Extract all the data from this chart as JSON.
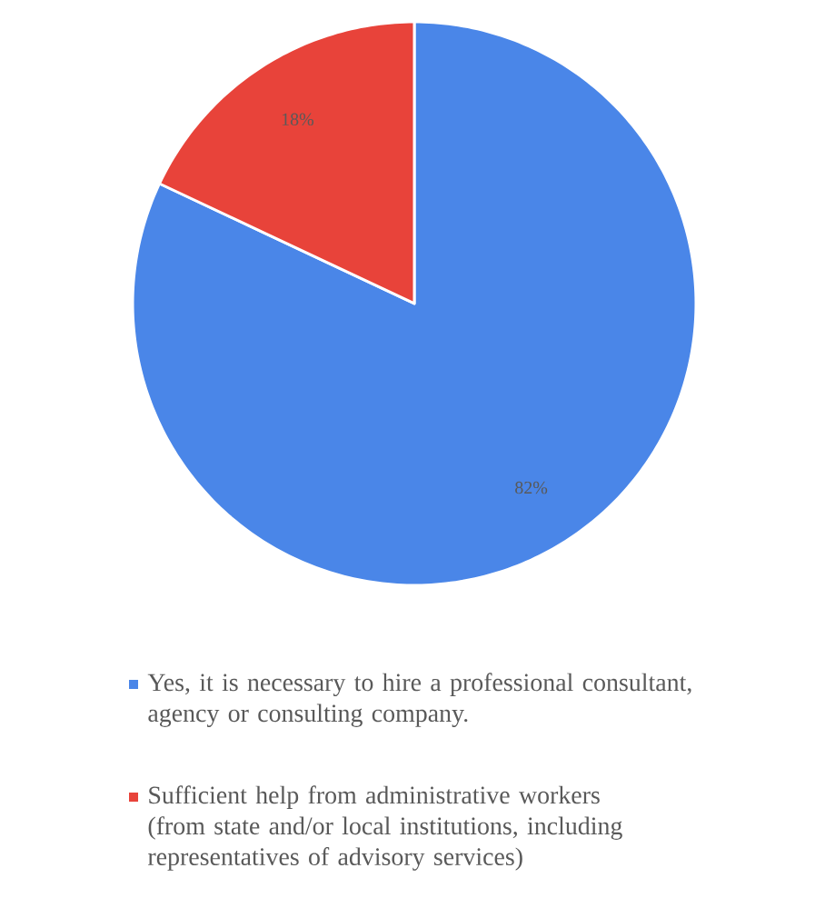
{
  "chart_data": {
    "type": "pie",
    "categories": [
      "Yes, it is necessary to hire a professional consultant, agency or consulting company.",
      "Sufficient help from administrative workers (from state and/or local institutions, including representatives of advisory services)"
    ],
    "values": [
      82,
      18
    ],
    "colors": [
      "#4a86e8",
      "#e8433a"
    ],
    "value_labels": [
      "82%",
      "18%"
    ],
    "legend": "bottom"
  }
}
